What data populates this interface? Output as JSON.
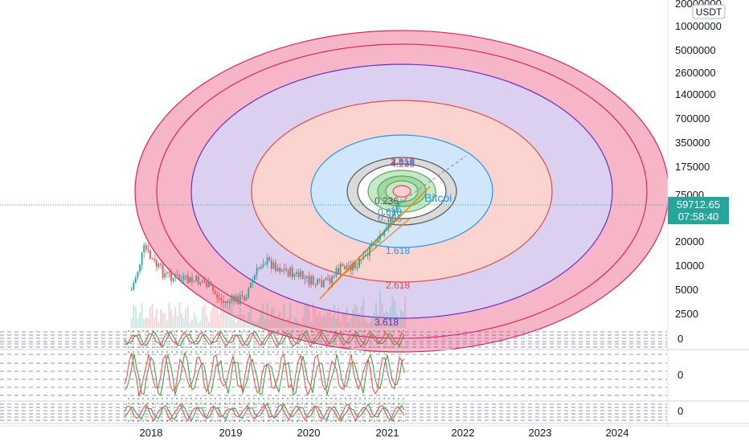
{
  "currency_badge": "USDT",
  "price_tag": {
    "price": "59712.65",
    "countdown": "07:58:40",
    "color": "#26a69a"
  },
  "series_label": "Bitcoi",
  "colors": {
    "ellipse_outer": "#e0245e",
    "ellipse_outer_fill": "#f7b6c8",
    "ellipse_purple": "#6a2cc9",
    "ellipse_purple_fill": "#dcd0f0",
    "ellipse_salmon": "#e34a4a",
    "ellipse_salmon_fill": "#fbd3cf",
    "ellipse_blue": "#2196f3",
    "ellipse_blue_fill": "#cfe6fb",
    "ellipse_grey": "#555555",
    "ellipse_green": "#4caf50",
    "candle_up": "#26a69a",
    "candle_down": "#ef5350",
    "osc_green": "#43a047",
    "osc_red": "#ef5350",
    "trendline": "#f57c00",
    "dashed_line": "#2962ff"
  },
  "chart_data": {
    "type": "candlestick",
    "scale": "log",
    "x_ticks": [
      "2018",
      "2019",
      "2020",
      "2021",
      "2022",
      "2023",
      "2024"
    ],
    "y_ticks": [
      {
        "value": 20000000,
        "label": "20000000"
      },
      {
        "value": 10000000,
        "label": "10000000"
      },
      {
        "value": 5000000,
        "label": "5000000"
      },
      {
        "value": 2600000,
        "label": "2600000"
      },
      {
        "value": 1400000,
        "label": "1400000"
      },
      {
        "value": 700000,
        "label": "700000"
      },
      {
        "value": 350000,
        "label": "350000"
      },
      {
        "value": 175000,
        "label": "175000"
      },
      {
        "value": 75000,
        "label": "75000"
      },
      {
        "value": 20000,
        "label": "20000"
      },
      {
        "value": 10000,
        "label": "10000"
      },
      {
        "value": 5000,
        "label": "5000"
      },
      {
        "value": 2500,
        "label": "2500"
      }
    ],
    "fib_labels": [
      {
        "label": "4.236",
        "color": "#e0245e"
      },
      {
        "label": "3.618",
        "color": "#6a2cc9"
      },
      {
        "label": "2.618",
        "color": "#e34a4a"
      },
      {
        "label": "1.618",
        "color": "#2196f3"
      },
      {
        "label": "0.786",
        "color": "#888888"
      },
      {
        "label": "0.618",
        "color": "#2196f3"
      },
      {
        "label": "0.236",
        "color": "#555555"
      }
    ],
    "bottom_fib_labels": [
      {
        "label": "3.618",
        "color": "#6a2cc9"
      },
      {
        "label": "2.618",
        "color": "#e34a4a"
      },
      {
        "label": "1.618",
        "color": "#2196f3"
      }
    ],
    "last_price": 59712.65,
    "oscillator_zero_labels": [
      "0",
      "0",
      "0"
    ],
    "price_path": [
      {
        "date": "2017-10",
        "price": 5000
      },
      {
        "date": "2017-12",
        "price": 17000
      },
      {
        "date": "2018-01",
        "price": 12000
      },
      {
        "date": "2018-03",
        "price": 8000
      },
      {
        "date": "2018-06",
        "price": 6500
      },
      {
        "date": "2018-09",
        "price": 6500
      },
      {
        "date": "2018-12",
        "price": 3500
      },
      {
        "date": "2019-03",
        "price": 4000
      },
      {
        "date": "2019-06",
        "price": 12000
      },
      {
        "date": "2019-09",
        "price": 9000
      },
      {
        "date": "2019-12",
        "price": 7200
      },
      {
        "date": "2020-03",
        "price": 5500
      },
      {
        "date": "2020-06",
        "price": 9500
      },
      {
        "date": "2020-09",
        "price": 11000
      },
      {
        "date": "2020-12",
        "price": 25000
      },
      {
        "date": "2021-02",
        "price": 50000
      },
      {
        "date": "2021-03",
        "price": 59712.65
      }
    ]
  }
}
